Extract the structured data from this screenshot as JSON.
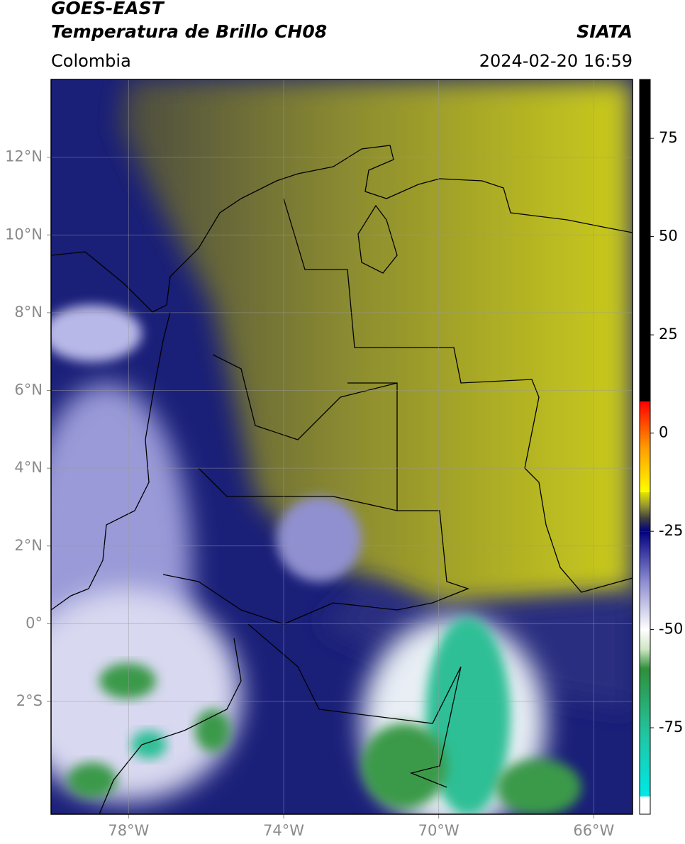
{
  "header": {
    "title": "GOES-EAST",
    "subtitle": "Temperatura de Brillo CH08",
    "region": "Colombia",
    "source": "SIATA",
    "timestamp": "2024-02-20 16:59"
  },
  "map": {
    "xlim": [
      -80,
      -65
    ],
    "ylim": [
      -4.9,
      14
    ],
    "xticks": [
      {
        "value": -78,
        "label": "78°W"
      },
      {
        "value": -74,
        "label": "74°W"
      },
      {
        "value": -70,
        "label": "70°W"
      },
      {
        "value": -66,
        "label": "66°W"
      }
    ],
    "yticks": [
      {
        "value": 12,
        "label": "12°N"
      },
      {
        "value": 10,
        "label": "10°N"
      },
      {
        "value": 8,
        "label": "8°N"
      },
      {
        "value": 6,
        "label": "6°N"
      },
      {
        "value": 4,
        "label": "4°N"
      },
      {
        "value": 2,
        "label": "2°N"
      },
      {
        "value": 0,
        "label": "0°"
      },
      {
        "value": -2,
        "label": "2°S"
      }
    ],
    "grid": true
  },
  "colorbar": {
    "lim": [
      -97,
      90
    ],
    "ticks": [
      75,
      50,
      25,
      0,
      -25,
      -50,
      -75
    ],
    "segments": [
      {
        "from": -97,
        "to": -92.5,
        "colors": [
          "#ffffff",
          "#ffffff"
        ]
      },
      {
        "from": -92.5,
        "to": -60,
        "colors": [
          "#00e8e8",
          "#22c4a0",
          "#2f8f3a"
        ]
      },
      {
        "from": -60,
        "to": -50,
        "colors": [
          "#2f8f3a",
          "#cfe6c4",
          "#ffffff"
        ]
      },
      {
        "from": -50,
        "to": -25,
        "colors": [
          "#ffffff",
          "#8a8ad0",
          "#000080"
        ]
      },
      {
        "from": -25,
        "to": -15,
        "colors": [
          "#000080",
          "#404040",
          "#9a9a30",
          "#e6e600"
        ]
      },
      {
        "from": -15,
        "to": 8,
        "colors": [
          "#ffff00",
          "#ff9900",
          "#ff0000"
        ]
      },
      {
        "from": 8,
        "to": 90,
        "colors": [
          "#000000",
          "#000000"
        ]
      }
    ]
  }
}
